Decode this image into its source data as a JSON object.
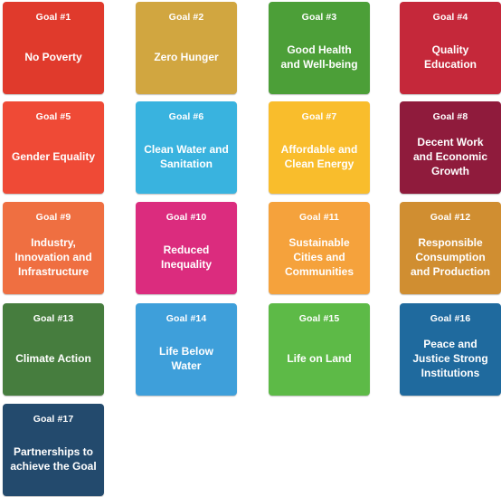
{
  "goals": [
    {
      "number": "Goal #1",
      "title": "No Poverty",
      "color": "#E03A2C"
    },
    {
      "number": "Goal #2",
      "title": "Zero Hunger",
      "color": "#D1A640"
    },
    {
      "number": "Goal #3",
      "title": "Good Health\nand Well-being",
      "color": "#4C9F38"
    },
    {
      "number": "Goal #4",
      "title": "Quality\nEducation",
      "color": "#C5283A"
    },
    {
      "number": "Goal #5",
      "title": "Gender Equality",
      "color": "#EF4A36"
    },
    {
      "number": "Goal #6",
      "title": "Clean Water and\nSanitation",
      "color": "#39B3DF"
    },
    {
      "number": "Goal #7",
      "title": "Affordable and\nClean Energy",
      "color": "#F9BD2C"
    },
    {
      "number": "Goal #8",
      "title": "Decent Work\nand Economic\nGrowth",
      "color": "#8F1B3C"
    },
    {
      "number": "Goal #9",
      "title": "Industry,\nInnovation and\nInfrastructure",
      "color": "#EF6F41"
    },
    {
      "number": "Goal #10",
      "title": "Reduced\nInequality",
      "color": "#DB2C7E"
    },
    {
      "number": "Goal #11",
      "title": "Sustainable\nCities and\nCommunities",
      "color": "#F5A23C"
    },
    {
      "number": "Goal #12",
      "title": "Responsible\nConsumption\nand Production",
      "color": "#D08E31"
    },
    {
      "number": "Goal #13",
      "title": "Climate Action",
      "color": "#467D3E"
    },
    {
      "number": "Goal #14",
      "title": "Life Below\nWater",
      "color": "#3E9FDA"
    },
    {
      "number": "Goal #15",
      "title": "Life on Land",
      "color": "#5DBA47"
    },
    {
      "number": "Goal #16",
      "title": "Peace and\nJustice Strong\nInstitutions",
      "color": "#1F6A9E"
    },
    {
      "number": "Goal #17",
      "title": "Partnerships to\nachieve the Goal",
      "color": "#234A6D"
    }
  ]
}
